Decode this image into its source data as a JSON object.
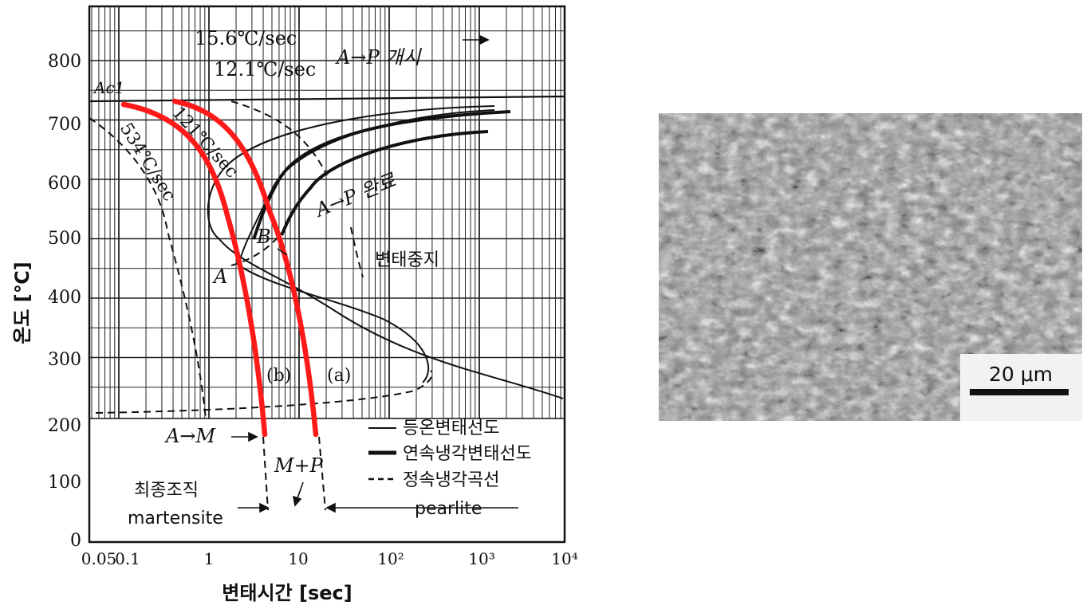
{
  "diagram": {
    "y_axis_label": "온도 [℃]",
    "x_axis_label": "변태시간 [sec]",
    "y_ticks": [
      "800",
      "700",
      "600",
      "500",
      "400",
      "300",
      "200",
      "100",
      "0"
    ],
    "x_ticks": [
      "0.05",
      "0.1",
      "1",
      "10",
      "10²",
      "10³",
      "10⁴"
    ],
    "ac1_label": "Ac1",
    "rate_labels": [
      "15.6℃/sec",
      "12.1℃/sec",
      "121℃/sec",
      "534℃/sec"
    ],
    "ap_start_label": "A→P 개시",
    "ap_finish_label": "A→P 완료",
    "transform_stop_label": "변태중지",
    "point_a": "A",
    "point_b": "B",
    "curve_b_label": "(b)",
    "curve_a_label": "(a)",
    "am_label": "A→M",
    "mp_label": "M+P",
    "final_structure_label": "최종조직",
    "martensite_label": "martensite",
    "pearlite_label": "pearlite",
    "legend": {
      "isothermal": "등온변태선도",
      "continuous": "연속냉각변태선도",
      "cooling": "정속냉각곡선"
    },
    "colors": {
      "cooling_path": "#ff1a1a",
      "ink": "#111111"
    }
  },
  "micrograph": {
    "scale_bar_label": "20 μm"
  }
}
